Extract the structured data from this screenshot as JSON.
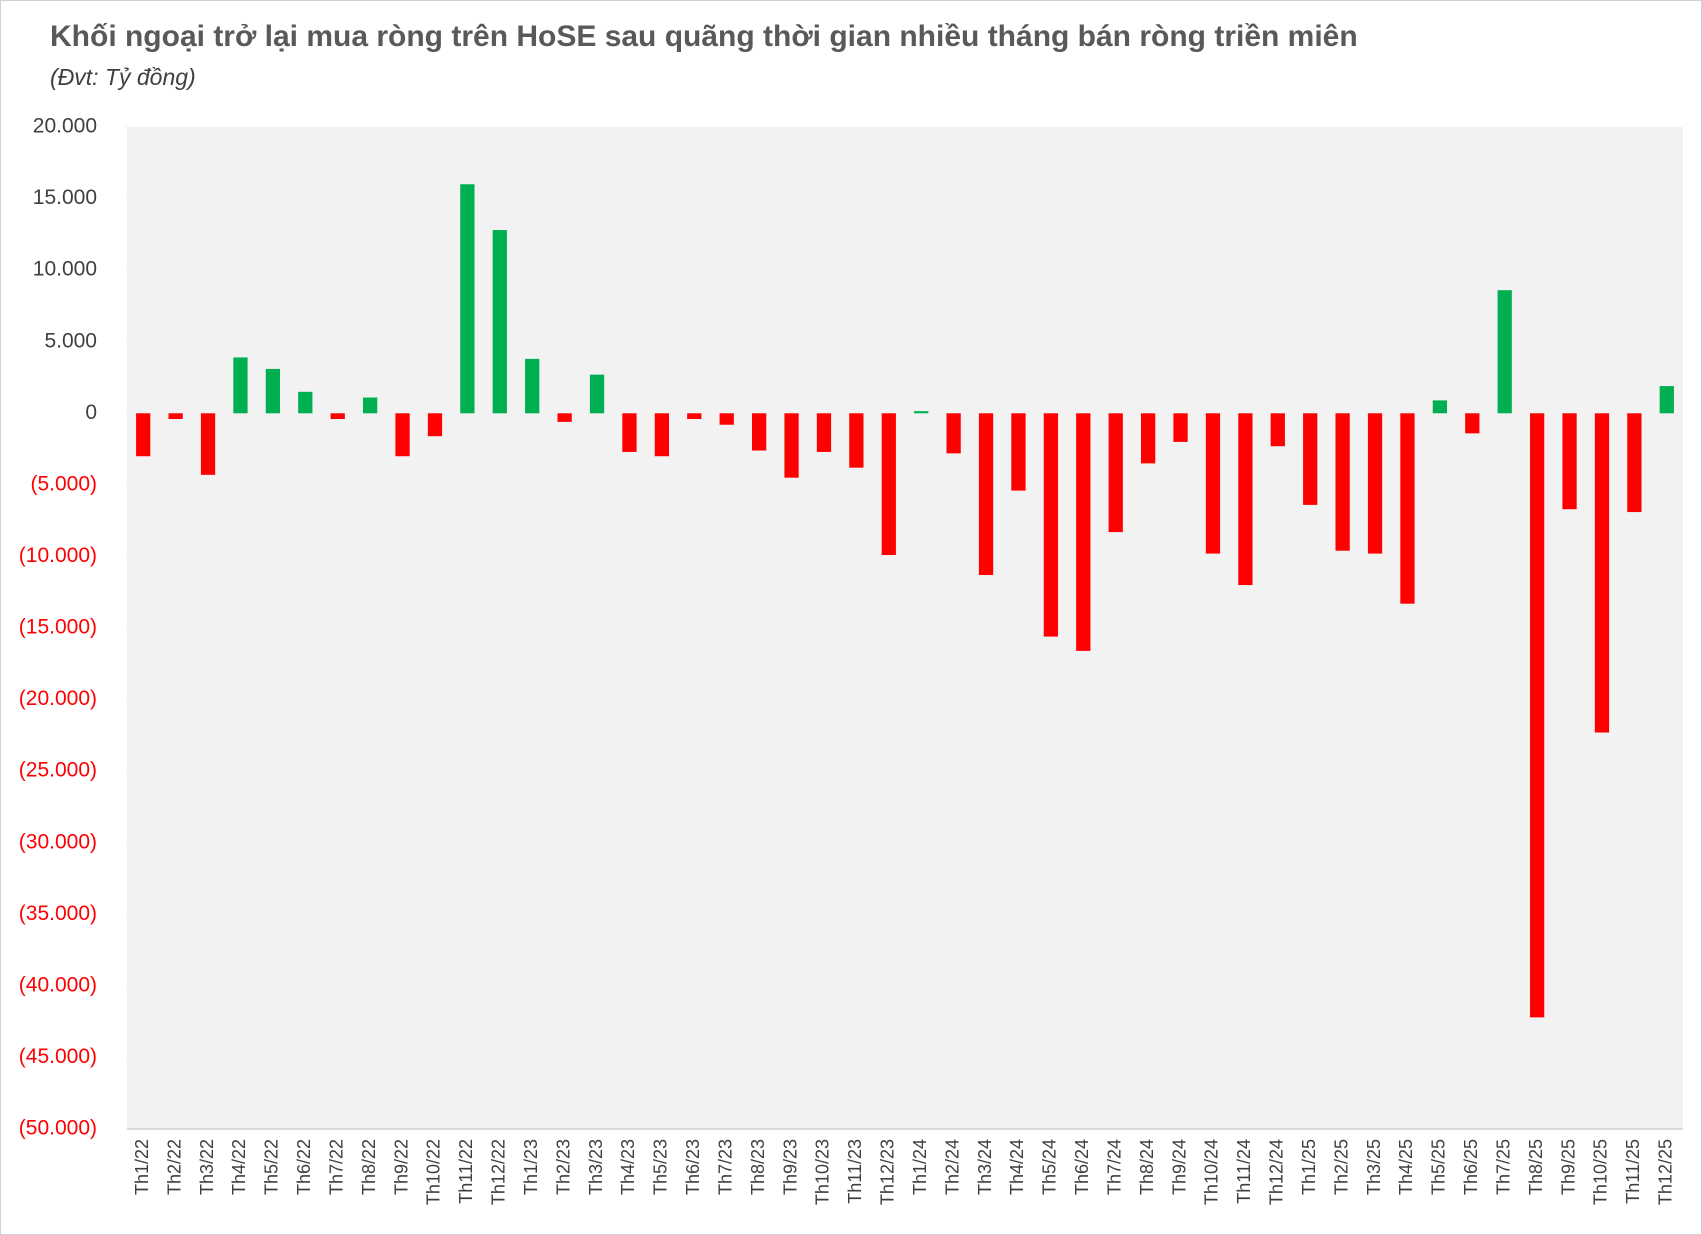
{
  "chart_data": {
    "type": "bar",
    "title": "Khối ngoại trở lại mua ròng trên HoSE sau quãng thời gian nhiều tháng bán ròng triền miên",
    "subtitle": "(Đvt: Tỷ đồng)",
    "categories": [
      "Th1/22",
      "Th2/22",
      "Th3/22",
      "Th4/22",
      "Th5/22",
      "Th6/22",
      "Th7/22",
      "Th8/22",
      "Th9/22",
      "Th10/22",
      "Th11/22",
      "Th12/22",
      "Th1/23",
      "Th2/23",
      "Th3/23",
      "Th4/23",
      "Th5/23",
      "Th6/23",
      "Th7/23",
      "Th8/23",
      "Th9/23",
      "Th10/23",
      "Th11/23",
      "Th12/23",
      "Th1/24",
      "Th2/24",
      "Th3/24",
      "Th4/24",
      "Th5/24",
      "Th6/24",
      "Th7/24",
      "Th8/24",
      "Th9/24",
      "Th10/24",
      "Th11/24",
      "Th12/24",
      "Th1/25",
      "Th2/25",
      "Th3/25",
      "Th4/25",
      "Th5/25",
      "Th6/25",
      "Th7/25",
      "Th8/25",
      "Th9/25",
      "Th10/25",
      "Th11/25",
      "Th12/25"
    ],
    "values": [
      -3000,
      -400,
      -4300,
      3900,
      3100,
      1500,
      -400,
      1100,
      -3000,
      -1600,
      16000,
      12800,
      3800,
      -600,
      2700,
      -2700,
      -3000,
      -400,
      -800,
      -2600,
      -4500,
      -2700,
      -3800,
      -9900,
      150,
      -2800,
      -11300,
      -5400,
      -15600,
      -16600,
      -8300,
      -3500,
      -2000,
      -9800,
      -12000,
      -2300,
      -6400,
      -9600,
      -9800,
      -13300,
      900,
      -1400,
      8600,
      -42200,
      -6700,
      -22300,
      -6900,
      1900
    ],
    "positive_color": "#00b050",
    "negative_color": "#ff0000",
    "ylim": [
      -50000,
      20000
    ],
    "yticks": [
      {
        "value": 20000,
        "label": "20.000"
      },
      {
        "value": 15000,
        "label": "15.000"
      },
      {
        "value": 10000,
        "label": "10.000"
      },
      {
        "value": 5000,
        "label": "5.000"
      },
      0,
      {
        "value": -5000,
        "label": "(5.000)"
      },
      {
        "value": -10000,
        "label": "(10.000)"
      },
      {
        "value": -15000,
        "label": "(15.000)"
      },
      {
        "value": -20000,
        "label": "(20.000)"
      },
      {
        "value": -25000,
        "label": "(25.000)"
      },
      {
        "value": -30000,
        "label": "(30.000)"
      },
      {
        "value": -35000,
        "label": "(35.000)"
      },
      {
        "value": -40000,
        "label": "(40.000)"
      },
      {
        "value": -45000,
        "label": "(45.000)"
      },
      {
        "value": -50000,
        "label": "(50.000)"
      }
    ]
  }
}
